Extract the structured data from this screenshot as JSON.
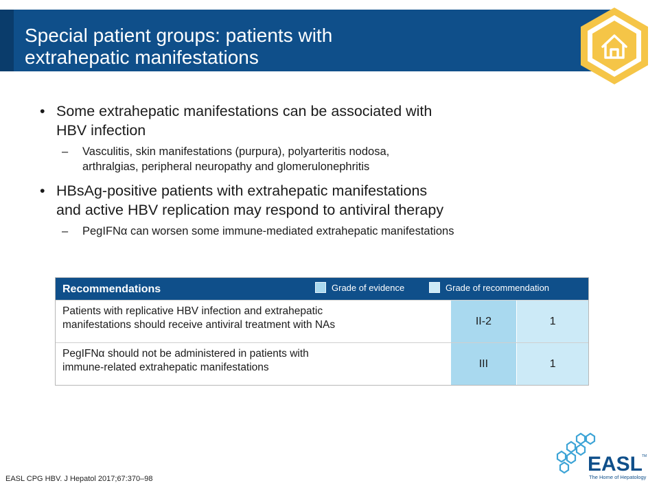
{
  "header": {
    "title_line1": "Special patient groups: patients with",
    "title_line2": "extrahepatic manifestations"
  },
  "home_icon": "home-icon",
  "bullets": [
    {
      "marker": "•",
      "text_line1": "Some extrahepatic manifestations can be associated with",
      "text_line2": "HBV infection",
      "sub": {
        "marker": "–",
        "line1": "Vasculitis, skin manifestations (purpura), polyarteritis nodosa,",
        "line2": "arthralgias, peripheral neuropathy and glomerulonephritis"
      }
    },
    {
      "marker": "•",
      "text_line1": "HBsAg-positive patients with extrahepatic manifestations",
      "text_line2": "and active HBV replication may respond to antiviral therapy",
      "sub": {
        "marker": "–",
        "line1": "PegIFNα can worsen some immune-mediated extrahepatic manifestations"
      }
    }
  ],
  "recommendations": {
    "heading": "Recommendations",
    "legend_evidence": "Grade of evidence",
    "legend_recommendation": "Grade of recommendation",
    "rows": [
      {
        "line1": "Patients with replicative HBV infection and extrahepatic",
        "line2": "manifestations should receive antiviral treatment with NAs",
        "evidence": "II-2",
        "grade": "1"
      },
      {
        "line1": "PegIFNα should not be administered in patients with",
        "line2": "immune-related extrahepatic manifestations",
        "evidence": "III",
        "grade": "1"
      }
    ]
  },
  "footer": {
    "citation": "EASL CPG HBV. J Hepatol 2017;67:370–98"
  },
  "logo": {
    "name": "EASL",
    "tagline": "The Home of Hepatology",
    "tm": "TM"
  },
  "colors": {
    "navy": "#0f4f8a",
    "gold": "#f5c547",
    "evidence": "#a9d9ef",
    "recommendation": "#cceaf7"
  }
}
